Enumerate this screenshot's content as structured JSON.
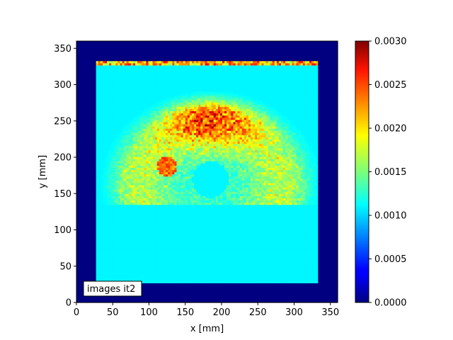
{
  "chart_data": {
    "type": "heatmap",
    "title": "",
    "xlabel": "x [mm]",
    "ylabel": "y [mm]",
    "xlim": [
      0,
      360
    ],
    "ylim": [
      0,
      360
    ],
    "x_ticks": [
      0,
      50,
      100,
      150,
      200,
      250,
      300,
      350
    ],
    "y_ticks": [
      0,
      50,
      100,
      150,
      200,
      250,
      300,
      350
    ],
    "colormap": "jet",
    "grid": false,
    "colorbar": {
      "range": [
        0.0,
        0.003
      ],
      "ticks": [
        "0.0000",
        "0.0005",
        "0.0010",
        "0.0015",
        "0.0020",
        "0.0025",
        "0.0030"
      ]
    },
    "annotation": {
      "text": "images it2",
      "position": "bottom-left"
    },
    "field": {
      "outside_value": 0.0,
      "background_value": 0.0011,
      "image_extent_x": [
        27,
        333
      ],
      "image_extent_y": [
        28,
        333
      ],
      "arc_center": [
        185,
        165
      ],
      "arc_peak_value": 0.0028,
      "arc_peak_y": 250,
      "hole_center": [
        185,
        170
      ],
      "hole_radius": 25,
      "hotspot_center": [
        125,
        188
      ],
      "hotspot_value": 0.0024,
      "top_strip_y": [
        328,
        333
      ],
      "top_strip_value": 0.0021
    }
  }
}
